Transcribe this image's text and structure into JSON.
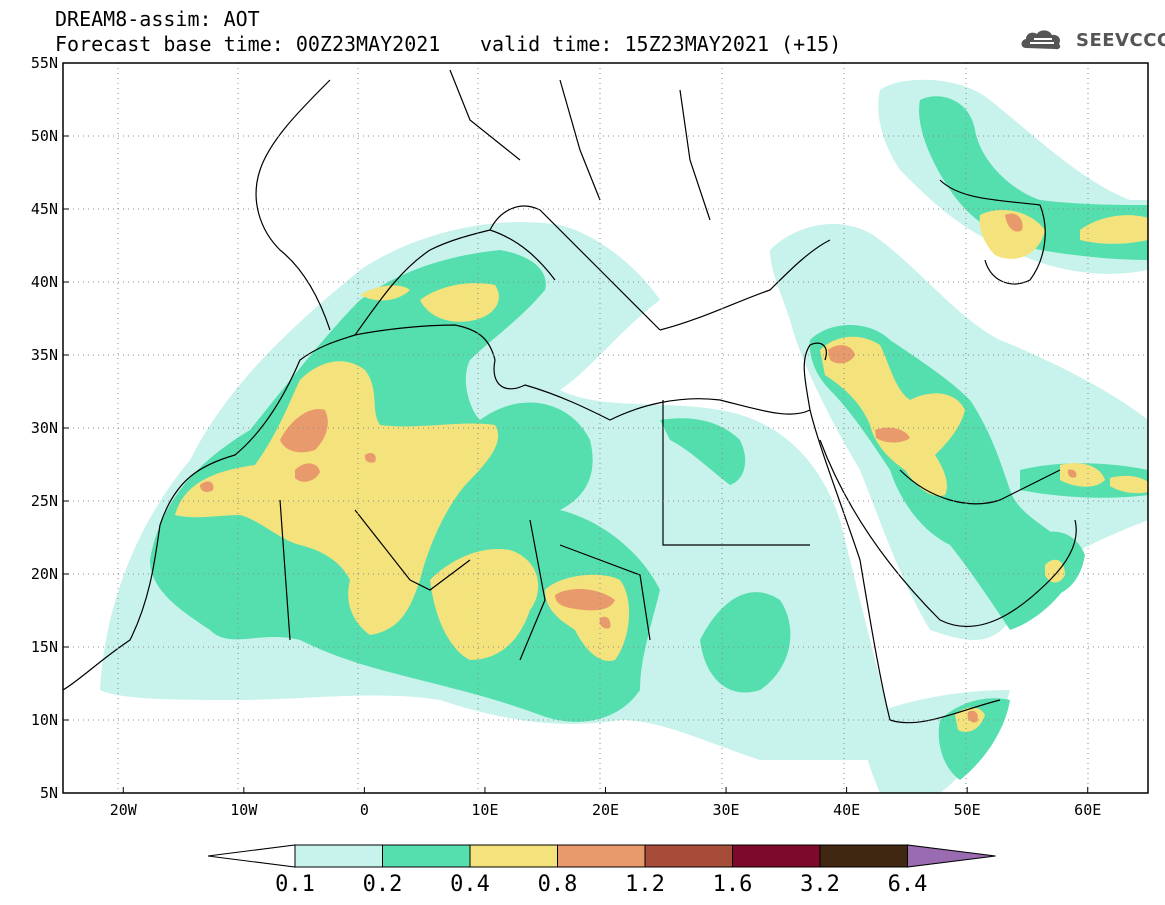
{
  "header": {
    "line1": "DREAM8-assim: AOT",
    "line2": "Forecast base time: 00Z23MAY2021",
    "line3": "valid time: 15Z23MAY2021 (+15)"
  },
  "logo": {
    "text": "SEEVCCC",
    "icon": "cloud-icon"
  },
  "map": {
    "lon_range": [
      -25,
      65
    ],
    "lat_range": [
      5,
      55
    ],
    "lat_ticks": [
      "55N",
      "50N",
      "45N",
      "40N",
      "35N",
      "30N",
      "25N",
      "20N",
      "15N",
      "10N",
      "5N"
    ],
    "lon_ticks": [
      "20W",
      "10W",
      "0",
      "10E",
      "20E",
      "30E",
      "40E",
      "50E",
      "60E"
    ],
    "grid": true
  },
  "colorbar": {
    "colors": [
      "#c8f3ec",
      "#56dfae",
      "#f4e37c",
      "#e99a6d",
      "#a84c3a",
      "#7d0a2a",
      "#3f2712",
      "#9a6bb0"
    ],
    "labels": [
      "0.1",
      "0.2",
      "0.4",
      "0.8",
      "1.2",
      "1.6",
      "3.2",
      "6.4"
    ]
  }
}
